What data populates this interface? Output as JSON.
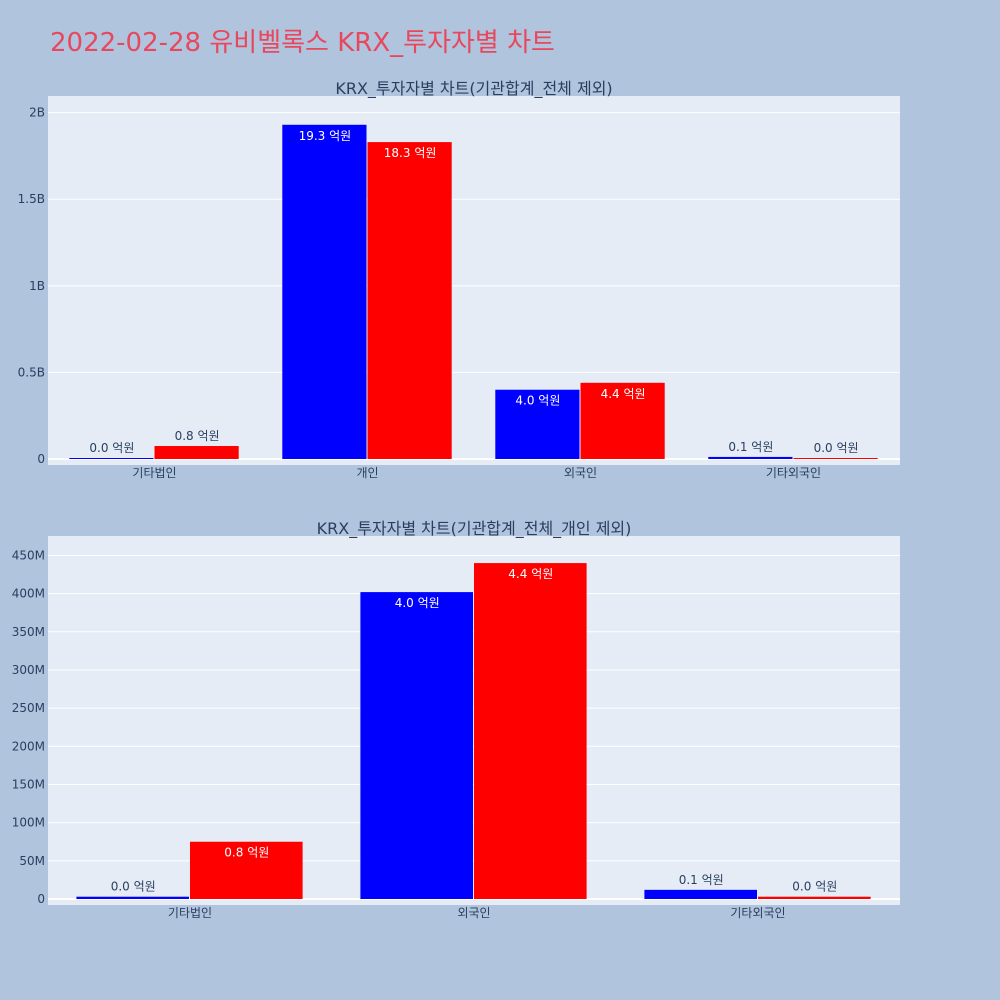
{
  "page_title": "2022-02-28 유비벨록스 KRX_투자자별 차트",
  "colors": {
    "series_a": "#0000ff",
    "series_b": "#ff0000",
    "title": "#e8485e"
  },
  "chart_data": [
    {
      "type": "bar",
      "title": "KRX_투자자별 차트(기관합계_전체 제외)",
      "categories": [
        "기타법인",
        "개인",
        "외국인",
        "기타외국인"
      ],
      "series": [
        {
          "color": "#0000ff",
          "values": [
            3000000,
            1930000000,
            400000000,
            12000000
          ],
          "labels": [
            "0.0 억원",
            "19.3 억원",
            "4.0 억원",
            "0.1 억원"
          ]
        },
        {
          "color": "#ff0000",
          "values": [
            75000000,
            1830000000,
            440000000,
            3000000
          ],
          "labels": [
            "0.8 억원",
            "18.3 억원",
            "4.4 억원",
            "0.0 억원"
          ]
        }
      ],
      "ylim": [
        0,
        2050000000
      ],
      "yticks": [
        0,
        500000000,
        1000000000,
        1500000000,
        2000000000
      ],
      "ytick_labels": [
        "0",
        "0.5B",
        "1B",
        "1.5B",
        "2B"
      ],
      "grid": true,
      "xlabel": "",
      "ylabel": ""
    },
    {
      "type": "bar",
      "title": "KRX_투자자별 차트(기관합계_전체_개인 제외)",
      "categories": [
        "기타법인",
        "외국인",
        "기타외국인"
      ],
      "series": [
        {
          "color": "#0000ff",
          "values": [
            3000000,
            402000000,
            12000000
          ],
          "labels": [
            "0.0 억원",
            "4.0 억원",
            "0.1 억원"
          ]
        },
        {
          "color": "#ff0000",
          "values": [
            75000000,
            440000000,
            3000000
          ],
          "labels": [
            "0.8 억원",
            "4.4 억원",
            "0.0 억원"
          ]
        }
      ],
      "ylim": [
        0,
        465000000
      ],
      "yticks": [
        0,
        50000000,
        100000000,
        150000000,
        200000000,
        250000000,
        300000000,
        350000000,
        400000000,
        450000000
      ],
      "ytick_labels": [
        "0",
        "50M",
        "100M",
        "150M",
        "200M",
        "250M",
        "300M",
        "350M",
        "400M",
        "450M"
      ],
      "grid": true,
      "xlabel": "",
      "ylabel": ""
    }
  ]
}
